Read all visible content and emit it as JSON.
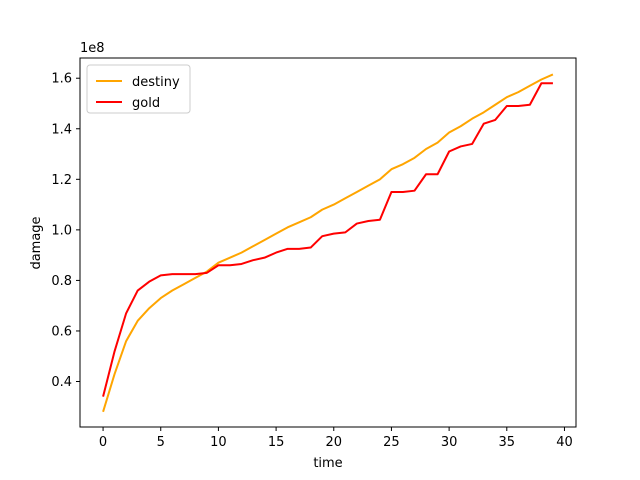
{
  "chart_data": {
    "type": "line",
    "xlabel": "time",
    "ylabel": "damage",
    "offset_text": "1e8",
    "xlim": [
      -2,
      41
    ],
    "ylim": [
      0.22,
      1.68
    ],
    "xticks": [
      0,
      5,
      10,
      15,
      20,
      25,
      30,
      35,
      40
    ],
    "yticks": [
      0.4,
      0.6,
      0.8,
      1.0,
      1.2,
      1.4,
      1.6
    ],
    "ytick_labels": [
      "0.4",
      "0.6",
      "0.8",
      "1.0",
      "1.2",
      "1.4",
      "1.6"
    ],
    "legend_position": "upper-left",
    "x": [
      0,
      1,
      2,
      3,
      4,
      5,
      6,
      7,
      8,
      9,
      10,
      11,
      12,
      13,
      14,
      15,
      16,
      17,
      18,
      19,
      20,
      21,
      22,
      23,
      24,
      25,
      26,
      27,
      28,
      29,
      30,
      31,
      32,
      33,
      34,
      35,
      36,
      37,
      38,
      39
    ],
    "series": [
      {
        "name": "destiny",
        "color": "#ffa500",
        "values": [
          0.28,
          0.43,
          0.56,
          0.64,
          0.69,
          0.73,
          0.76,
          0.785,
          0.81,
          0.835,
          0.87,
          0.89,
          0.91,
          0.935,
          0.96,
          0.985,
          1.01,
          1.03,
          1.05,
          1.08,
          1.1,
          1.125,
          1.15,
          1.175,
          1.2,
          1.24,
          1.26,
          1.285,
          1.32,
          1.345,
          1.385,
          1.41,
          1.44,
          1.465,
          1.495,
          1.525,
          1.545,
          1.57,
          1.595,
          1.615
        ]
      },
      {
        "name": "gold",
        "color": "#ff0000",
        "values": [
          0.34,
          0.52,
          0.67,
          0.76,
          0.795,
          0.82,
          0.825,
          0.825,
          0.825,
          0.83,
          0.86,
          0.86,
          0.865,
          0.88,
          0.89,
          0.91,
          0.925,
          0.925,
          0.93,
          0.975,
          0.985,
          0.99,
          1.025,
          1.035,
          1.04,
          1.15,
          1.15,
          1.155,
          1.22,
          1.22,
          1.31,
          1.33,
          1.34,
          1.42,
          1.435,
          1.49,
          1.49,
          1.495,
          1.58,
          1.58
        ]
      }
    ]
  }
}
